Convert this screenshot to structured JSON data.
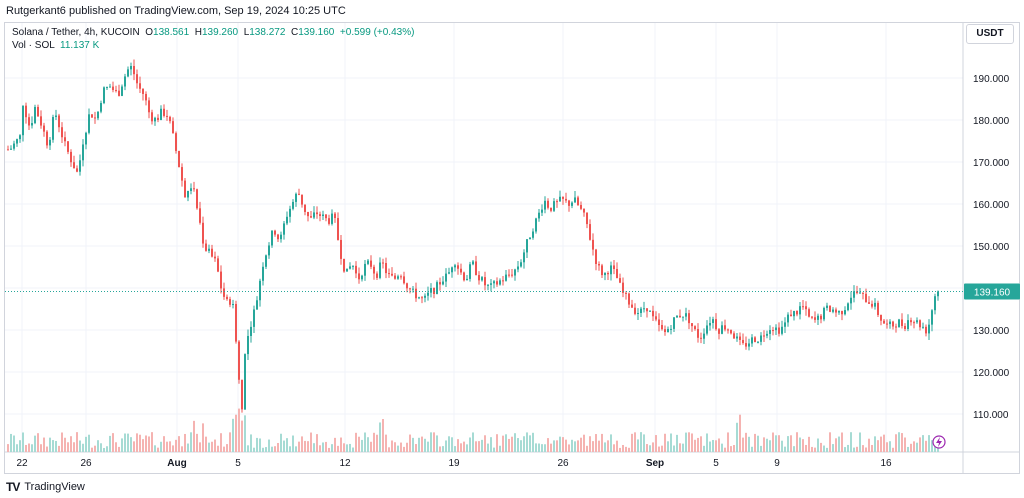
{
  "header": {
    "publisher": "Rutgerkant6 published on TradingView.com, Sep 19, 2024 10:25 UTC"
  },
  "legend": {
    "symbol": "Solana / Tether, 4h, KUCOIN",
    "o_label": "O",
    "o_value": "138.561",
    "h_label": "H",
    "h_value": "139.260",
    "l_label": "L",
    "l_value": "138.272",
    "c_label": "C",
    "c_value": "139.160",
    "change": "+0.599 (+0.43%)",
    "vol_label": "Vol · SOL",
    "vol_value": "11.137 K"
  },
  "currency_button": "USDT",
  "footer": {
    "brand": "TradingView",
    "logo_icon": "tradingview-logo-icon"
  },
  "colors": {
    "up": "#26a69a",
    "down": "#ef5350",
    "up_vol": "#a6dbd4",
    "down_vol": "#f5b3b1",
    "grid": "#f0f3fa",
    "axis_text": "#131722",
    "price_line": "#26a69a"
  },
  "chart_data": {
    "type": "candlestick",
    "symbol": "SOL/USDT",
    "timeframe": "4h",
    "y_axis": {
      "ticks": [
        "110.000",
        "120.000",
        "130.000",
        "140.000",
        "150.000",
        "160.000",
        "170.000",
        "180.000",
        "190.000"
      ],
      "tick_values": [
        110,
        120,
        130,
        140,
        150,
        160,
        170,
        180,
        190
      ],
      "ylim": [
        101.5,
        199.5
      ],
      "position": "right"
    },
    "x_axis": {
      "ticks": [
        "22",
        "26",
        "Aug",
        "5",
        "12",
        "19",
        "26",
        "Sep",
        "5",
        "9",
        "16"
      ],
      "tick_x": [
        22,
        86,
        177,
        238,
        345,
        454,
        563,
        655,
        716,
        777,
        886
      ]
    },
    "last_price": "139.160",
    "last_price_value": 139.16,
    "price_path": [
      [
        10,
        173
      ],
      [
        20,
        176
      ],
      [
        22,
        185
      ],
      [
        30,
        178
      ],
      [
        35,
        183
      ],
      [
        40,
        180
      ],
      [
        48,
        174
      ],
      [
        55,
        182
      ],
      [
        65,
        174
      ],
      [
        72,
        170
      ],
      [
        78,
        167
      ],
      [
        82,
        174
      ],
      [
        90,
        182
      ],
      [
        96,
        180
      ],
      [
        103,
        187
      ],
      [
        110,
        188
      ],
      [
        118,
        186
      ],
      [
        124,
        190
      ],
      [
        130,
        193
      ],
      [
        134,
        191
      ],
      [
        138,
        188
      ],
      [
        144,
        186
      ],
      [
        150,
        181
      ],
      [
        156,
        180
      ],
      [
        162,
        182
      ],
      [
        168,
        181
      ],
      [
        174,
        175
      ],
      [
        180,
        168
      ],
      [
        186,
        161
      ],
      [
        192,
        165
      ],
      [
        198,
        158
      ],
      [
        204,
        150
      ],
      [
        210,
        148
      ],
      [
        216,
        146
      ],
      [
        222,
        139
      ],
      [
        228,
        136
      ],
      [
        232,
        138
      ],
      [
        236,
        128
      ],
      [
        239,
        118
      ],
      [
        242,
        112
      ],
      [
        245,
        124
      ],
      [
        250,
        131
      ],
      [
        256,
        136
      ],
      [
        262,
        145
      ],
      [
        268,
        150
      ],
      [
        274,
        154
      ],
      [
        280,
        151
      ],
      [
        286,
        157
      ],
      [
        292,
        160
      ],
      [
        298,
        163
      ],
      [
        304,
        159
      ],
      [
        310,
        156
      ],
      [
        316,
        158
      ],
      [
        322,
        157
      ],
      [
        328,
        156
      ],
      [
        334,
        157
      ],
      [
        340,
        149
      ],
      [
        346,
        143
      ],
      [
        352,
        146
      ],
      [
        358,
        142
      ],
      [
        364,
        145
      ],
      [
        370,
        146
      ],
      [
        376,
        143
      ],
      [
        382,
        146
      ],
      [
        388,
        143
      ],
      [
        394,
        142
      ],
      [
        400,
        144
      ],
      [
        406,
        141
      ],
      [
        412,
        139
      ],
      [
        418,
        138
      ],
      [
        424,
        137
      ],
      [
        430,
        139
      ],
      [
        436,
        140
      ],
      [
        442,
        142
      ],
      [
        448,
        143
      ],
      [
        454,
        147
      ],
      [
        460,
        144
      ],
      [
        466,
        142
      ],
      [
        472,
        146
      ],
      [
        478,
        143
      ],
      [
        484,
        141
      ],
      [
        490,
        140
      ],
      [
        496,
        141
      ],
      [
        502,
        142
      ],
      [
        508,
        143
      ],
      [
        514,
        144
      ],
      [
        520,
        146
      ],
      [
        526,
        150
      ],
      [
        532,
        154
      ],
      [
        538,
        157
      ],
      [
        544,
        161
      ],
      [
        550,
        159
      ],
      [
        556,
        160
      ],
      [
        562,
        161
      ],
      [
        568,
        160
      ],
      [
        574,
        161
      ],
      [
        580,
        159
      ],
      [
        586,
        156
      ],
      [
        592,
        150
      ],
      [
        598,
        145
      ],
      [
        604,
        143
      ],
      [
        610,
        145
      ],
      [
        616,
        143
      ],
      [
        622,
        139
      ],
      [
        628,
        137
      ],
      [
        634,
        135
      ],
      [
        640,
        134
      ],
      [
        646,
        136
      ],
      [
        652,
        133
      ],
      [
        658,
        131
      ],
      [
        664,
        129
      ],
      [
        670,
        131
      ],
      [
        676,
        133
      ],
      [
        682,
        134
      ],
      [
        688,
        133
      ],
      [
        694,
        130
      ],
      [
        700,
        128
      ],
      [
        706,
        131
      ],
      [
        712,
        133
      ],
      [
        718,
        130
      ],
      [
        724,
        131
      ],
      [
        730,
        130
      ],
      [
        736,
        128
      ],
      [
        742,
        126
      ],
      [
        748,
        127
      ],
      [
        754,
        128
      ],
      [
        760,
        128
      ],
      [
        766,
        130
      ],
      [
        772,
        131
      ],
      [
        778,
        130
      ],
      [
        784,
        131
      ],
      [
        790,
        134
      ],
      [
        796,
        134
      ],
      [
        802,
        136
      ],
      [
        808,
        133
      ],
      [
        814,
        132
      ],
      [
        820,
        133
      ],
      [
        826,
        135
      ],
      [
        832,
        135
      ],
      [
        838,
        134
      ],
      [
        844,
        135
      ],
      [
        850,
        138
      ],
      [
        856,
        139
      ],
      [
        862,
        138
      ],
      [
        868,
        137
      ],
      [
        874,
        136
      ],
      [
        880,
        133
      ],
      [
        886,
        131
      ],
      [
        892,
        131
      ],
      [
        898,
        132
      ],
      [
        904,
        131
      ],
      [
        910,
        133
      ],
      [
        916,
        132
      ],
      [
        922,
        131
      ],
      [
        926,
        130
      ],
      [
        930,
        132
      ],
      [
        934,
        138
      ],
      [
        938,
        139.16
      ]
    ],
    "volume_hint": "volume histogram along bottom; spikes near Aug 5 and early Sep"
  }
}
